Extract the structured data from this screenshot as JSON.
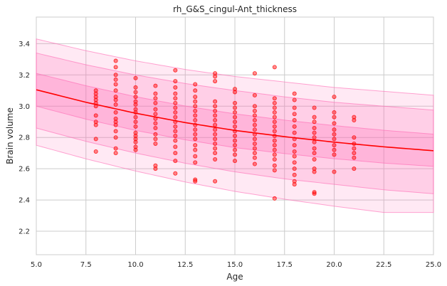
{
  "chart_data": {
    "type": "scatter",
    "title": "rh_G&S_cingul-Ant_thickness",
    "xlabel": "Age",
    "ylabel": "Brain volume",
    "xlim": [
      5.0,
      25.0
    ],
    "ylim": [
      2.05,
      3.57
    ],
    "x_ticks": [
      5.0,
      7.5,
      10.0,
      12.5,
      15.0,
      17.5,
      20.0,
      22.5,
      25.0
    ],
    "x_tick_labels": [
      "5.0",
      "7.5",
      "10.0",
      "12.5",
      "15.0",
      "17.5",
      "20.0",
      "22.5",
      "25.0"
    ],
    "y_ticks": [
      2.2,
      2.4,
      2.6,
      2.8,
      3.0,
      3.2,
      3.4
    ],
    "y_tick_labels": [
      "2.2",
      "2.4",
      "2.6",
      "2.8",
      "3.0",
      "3.2",
      "3.4"
    ],
    "grid": true,
    "colors": {
      "fit_line": "#ff0000",
      "points": "#ff0000",
      "band": "#ff69b4",
      "grid": "#cccccc"
    },
    "fit_curve": {
      "x": [
        5,
        7.5,
        10,
        12.5,
        15,
        17.5,
        20,
        22.5,
        25
      ],
      "y": [
        3.105,
        3.025,
        2.955,
        2.895,
        2.845,
        2.805,
        2.77,
        2.74,
        2.715
      ]
    },
    "bands": [
      {
        "offsets_low": [
          0.355,
          0.362,
          0.37,
          0.38,
          0.39,
          0.4,
          0.41,
          0.42,
          0.395
        ],
        "offsets_high": [
          0.325,
          0.33,
          0.335,
          0.34,
          0.345,
          0.35,
          0.35,
          0.355,
          0.355
        ]
      },
      {
        "offsets_low": [
          0.245,
          0.25,
          0.255,
          0.26,
          0.265,
          0.27,
          0.27,
          0.275,
          0.275
        ],
        "offsets_high": [
          0.235,
          0.24,
          0.245,
          0.25,
          0.255,
          0.255,
          0.255,
          0.26,
          0.26
        ]
      },
      {
        "offsets_low": [
          0.105,
          0.108,
          0.11,
          0.11,
          0.11,
          0.108,
          0.106,
          0.104,
          0.1
        ],
        "offsets_high": [
          0.105,
          0.106,
          0.106,
          0.106,
          0.106,
          0.106,
          0.106,
          0.106,
          0.106
        ]
      }
    ],
    "points": [
      [
        8,
        3.1
      ],
      [
        8,
        3.08
      ],
      [
        8,
        3.06
      ],
      [
        8,
        3.04
      ],
      [
        8,
        3.02
      ],
      [
        8,
        3.0
      ],
      [
        8,
        2.94
      ],
      [
        8,
        2.9
      ],
      [
        8,
        2.88
      ],
      [
        8,
        2.79
      ],
      [
        8,
        2.71
      ],
      [
        9,
        3.29
      ],
      [
        9,
        3.25
      ],
      [
        9,
        3.2
      ],
      [
        9,
        3.17
      ],
      [
        9,
        3.14
      ],
      [
        9,
        3.1
      ],
      [
        9,
        3.06
      ],
      [
        9,
        3.04
      ],
      [
        9,
        3.01
      ],
      [
        9,
        2.96
      ],
      [
        9,
        2.92
      ],
      [
        9,
        2.9
      ],
      [
        9,
        2.88
      ],
      [
        9,
        2.84
      ],
      [
        9,
        2.8
      ],
      [
        9,
        2.73
      ],
      [
        9,
        2.7
      ],
      [
        10,
        3.18
      ],
      [
        10,
        3.12
      ],
      [
        10,
        3.09
      ],
      [
        10,
        3.06
      ],
      [
        10,
        3.03
      ],
      [
        10,
        3.01
      ],
      [
        10,
        2.98
      ],
      [
        10,
        2.96
      ],
      [
        10,
        2.93
      ],
      [
        10,
        2.9
      ],
      [
        10,
        2.87
      ],
      [
        10,
        2.83
      ],
      [
        10,
        2.81
      ],
      [
        10,
        2.79
      ],
      [
        10,
        2.77
      ],
      [
        10,
        2.74
      ],
      [
        10,
        2.72
      ],
      [
        11,
        3.13
      ],
      [
        11,
        3.08
      ],
      [
        11,
        3.05
      ],
      [
        11,
        3.02
      ],
      [
        11,
        2.98
      ],
      [
        11,
        2.95
      ],
      [
        11,
        2.92
      ],
      [
        11,
        2.89
      ],
      [
        11,
        2.86
      ],
      [
        11,
        2.82
      ],
      [
        11,
        2.79
      ],
      [
        11,
        2.76
      ],
      [
        11,
        2.62
      ],
      [
        11,
        2.6
      ],
      [
        12,
        3.23
      ],
      [
        12,
        3.16
      ],
      [
        12,
        3.12
      ],
      [
        12,
        3.08
      ],
      [
        12,
        3.05
      ],
      [
        12,
        3.02
      ],
      [
        12,
        2.99
      ],
      [
        12,
        2.96
      ],
      [
        12,
        2.93
      ],
      [
        12,
        2.9
      ],
      [
        12,
        2.87
      ],
      [
        12,
        2.84
      ],
      [
        12,
        2.81
      ],
      [
        12,
        2.78
      ],
      [
        12,
        2.74
      ],
      [
        12,
        2.7
      ],
      [
        12,
        2.65
      ],
      [
        12,
        2.57
      ],
      [
        13,
        3.14
      ],
      [
        13,
        3.1
      ],
      [
        13,
        3.06
      ],
      [
        13,
        3.03
      ],
      [
        13,
        3.0
      ],
      [
        13,
        2.97
      ],
      [
        13,
        2.94
      ],
      [
        13,
        2.91
      ],
      [
        13,
        2.88
      ],
      [
        13,
        2.85
      ],
      [
        13,
        2.82
      ],
      [
        13,
        2.79
      ],
      [
        13,
        2.75
      ],
      [
        13,
        2.72
      ],
      [
        13,
        2.68
      ],
      [
        13,
        2.64
      ],
      [
        13,
        2.53
      ],
      [
        13,
        2.52
      ],
      [
        14,
        3.21
      ],
      [
        14,
        3.19
      ],
      [
        14,
        3.16
      ],
      [
        14,
        3.03
      ],
      [
        14,
        3.0
      ],
      [
        14,
        2.97
      ],
      [
        14,
        2.94
      ],
      [
        14,
        2.91
      ],
      [
        14,
        2.88
      ],
      [
        14,
        2.85
      ],
      [
        14,
        2.82
      ],
      [
        14,
        2.79
      ],
      [
        14,
        2.76
      ],
      [
        14,
        2.73
      ],
      [
        14,
        2.7
      ],
      [
        14,
        2.66
      ],
      [
        14,
        2.52
      ],
      [
        15,
        3.11
      ],
      [
        15,
        3.09
      ],
      [
        15,
        3.02
      ],
      [
        15,
        2.99
      ],
      [
        15,
        2.96
      ],
      [
        15,
        2.93
      ],
      [
        15,
        2.9
      ],
      [
        15,
        2.87
      ],
      [
        15,
        2.84
      ],
      [
        15,
        2.81
      ],
      [
        15,
        2.78
      ],
      [
        15,
        2.75
      ],
      [
        15,
        2.72
      ],
      [
        15,
        2.69
      ],
      [
        15,
        2.65
      ],
      [
        16,
        3.21
      ],
      [
        16,
        3.07
      ],
      [
        16,
        3.0
      ],
      [
        16,
        2.97
      ],
      [
        16,
        2.94
      ],
      [
        16,
        2.91
      ],
      [
        16,
        2.88
      ],
      [
        16,
        2.85
      ],
      [
        16,
        2.82
      ],
      [
        16,
        2.79
      ],
      [
        16,
        2.76
      ],
      [
        16,
        2.73
      ],
      [
        16,
        2.7
      ],
      [
        16,
        2.67
      ],
      [
        16,
        2.63
      ],
      [
        17,
        3.25
      ],
      [
        17,
        3.05
      ],
      [
        17,
        3.02
      ],
      [
        17,
        2.99
      ],
      [
        17,
        2.96
      ],
      [
        17,
        2.93
      ],
      [
        17,
        2.9
      ],
      [
        17,
        2.87
      ],
      [
        17,
        2.84
      ],
      [
        17,
        2.81
      ],
      [
        17,
        2.78
      ],
      [
        17,
        2.75
      ],
      [
        17,
        2.72
      ],
      [
        17,
        2.69
      ],
      [
        17,
        2.66
      ],
      [
        17,
        2.62
      ],
      [
        17,
        2.59
      ],
      [
        17,
        2.41
      ],
      [
        18,
        3.08
      ],
      [
        18,
        3.04
      ],
      [
        18,
        2.99
      ],
      [
        18,
        2.95
      ],
      [
        18,
        2.91
      ],
      [
        18,
        2.87
      ],
      [
        18,
        2.83
      ],
      [
        18,
        2.79
      ],
      [
        18,
        2.75
      ],
      [
        18,
        2.71
      ],
      [
        18,
        2.68
      ],
      [
        18,
        2.64
      ],
      [
        18,
        2.6
      ],
      [
        18,
        2.56
      ],
      [
        18,
        2.52
      ],
      [
        18,
        2.5
      ],
      [
        19,
        2.99
      ],
      [
        19,
        2.93
      ],
      [
        19,
        2.9
      ],
      [
        19,
        2.86
      ],
      [
        19,
        2.83
      ],
      [
        19,
        2.8
      ],
      [
        19,
        2.77
      ],
      [
        19,
        2.73
      ],
      [
        19,
        2.7
      ],
      [
        19,
        2.66
      ],
      [
        19,
        2.6
      ],
      [
        19,
        2.58
      ],
      [
        19,
        2.45
      ],
      [
        19,
        2.44
      ],
      [
        20,
        3.06
      ],
      [
        20,
        2.96
      ],
      [
        20,
        2.93
      ],
      [
        20,
        2.89
      ],
      [
        20,
        2.85
      ],
      [
        20,
        2.82
      ],
      [
        20,
        2.79
      ],
      [
        20,
        2.75
      ],
      [
        20,
        2.72
      ],
      [
        20,
        2.69
      ],
      [
        20,
        2.58
      ],
      [
        21,
        2.93
      ],
      [
        21,
        2.91
      ],
      [
        21,
        2.8
      ],
      [
        21,
        2.76
      ],
      [
        21,
        2.73
      ],
      [
        21,
        2.7
      ],
      [
        21,
        2.67
      ],
      [
        21,
        2.6
      ]
    ]
  }
}
